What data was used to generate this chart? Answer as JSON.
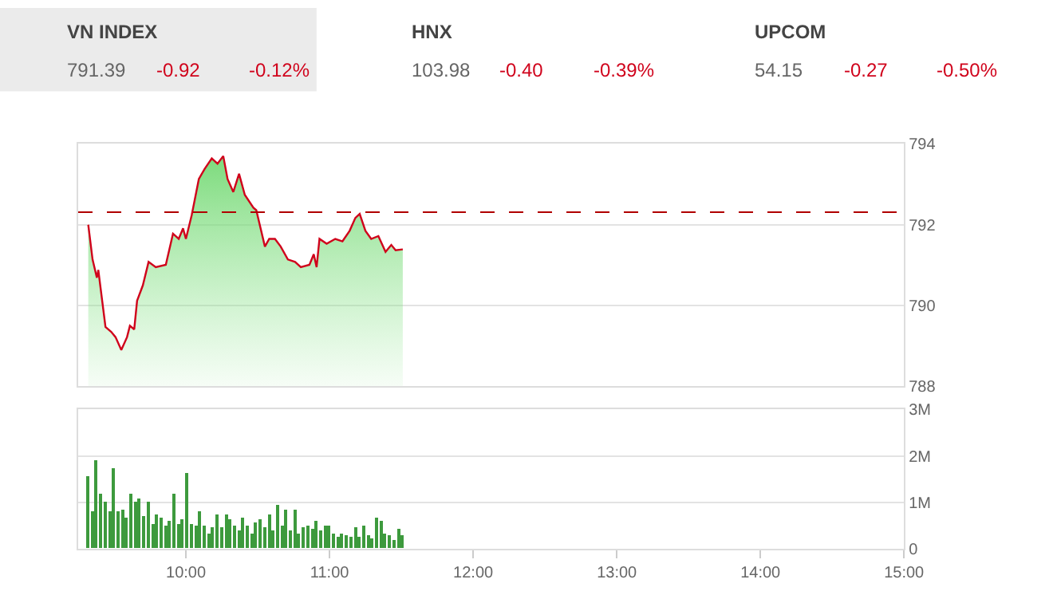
{
  "chart_data": [
    {
      "type": "other",
      "categories": [
        "VN INDEX",
        "HNX",
        "UPCOM"
      ],
      "annotations": [
        "791.39",
        "-0.92",
        "-0.12%",
        "103.98",
        "-0.40",
        "-0.39%",
        "54.15",
        "-0.27",
        "-0.50%"
      ]
    },
    {
      "type": "area",
      "color": "#d0021b",
      "x": [
        9.32,
        9.35,
        9.38,
        9.39,
        9.44,
        9.48,
        9.51,
        9.55,
        9.59,
        9.61,
        9.64,
        9.66,
        9.7,
        9.74,
        9.79,
        9.86,
        9.91,
        9.95,
        9.98,
        10.0,
        10.04,
        10.09,
        10.13,
        10.18,
        10.22,
        10.26,
        10.29,
        10.33,
        10.37,
        10.41,
        10.47,
        10.49,
        10.55,
        10.58,
        10.62,
        10.66,
        10.71,
        10.76,
        10.8,
        10.86,
        10.89,
        10.91,
        10.93,
        10.98,
        11.04,
        11.09,
        11.14,
        11.18,
        11.21,
        11.25,
        11.29,
        11.34,
        11.39,
        11.43,
        11.46,
        11.51
      ],
      "values": [
        792.0,
        791.14,
        790.69,
        790.88,
        789.47,
        789.35,
        789.22,
        788.9,
        789.22,
        789.5,
        789.41,
        790.12,
        790.5,
        791.08,
        790.95,
        791.01,
        791.78,
        791.65,
        791.91,
        791.65,
        792.23,
        793.13,
        793.38,
        793.64,
        793.51,
        793.7,
        793.13,
        792.81,
        793.26,
        792.74,
        792.42,
        792.36,
        791.46,
        791.65,
        791.65,
        791.46,
        791.14,
        791.08,
        790.95,
        791.01,
        791.27,
        790.95,
        791.65,
        791.53,
        791.65,
        791.59,
        791.85,
        792.17,
        792.27,
        791.85,
        791.65,
        791.72,
        791.33,
        791.5,
        791.37,
        791.39
      ],
      "ref_lines": [
        {
          "axis": "y",
          "value": 792.31,
          "color": "#b00000",
          "line_style": "dashed"
        }
      ],
      "xlim": [
        9.25,
        15
      ],
      "ylim": [
        788,
        794
      ],
      "yticks": [
        788,
        790,
        792,
        794
      ],
      "grid": "y",
      "tick_labels": "y"
    },
    {
      "type": "bar",
      "color": "#3d9a3d",
      "x": [
        9.32,
        9.35,
        9.38,
        9.41,
        9.44,
        9.47,
        9.5,
        9.53,
        9.56,
        9.59,
        9.62,
        9.65,
        9.68,
        9.71,
        9.74,
        9.77,
        9.8,
        9.83,
        9.86,
        9.89,
        9.92,
        9.95,
        9.98,
        10.01,
        10.04,
        10.07,
        10.1,
        10.13,
        10.16,
        10.19,
        10.22,
        10.25,
        10.28,
        10.31,
        10.34,
        10.37,
        10.4,
        10.43,
        10.46,
        10.49,
        10.52,
        10.55,
        10.58,
        10.61,
        10.64,
        10.67,
        10.7,
        10.73,
        10.76,
        10.79,
        10.82,
        10.85,
        10.88,
        10.91,
        10.94,
        10.97,
        11.0,
        11.03,
        11.06,
        11.09,
        11.12,
        11.15,
        11.18,
        11.21,
        11.24,
        11.27,
        11.3,
        11.33,
        11.36,
        11.39,
        11.42,
        11.45,
        11.48,
        11.51
      ],
      "values": [
        1.56,
        0.78,
        1.89,
        1.17,
        1.0,
        0.78,
        1.74,
        0.78,
        0.83,
        0.67,
        1.19,
        1.0,
        1.06,
        0.7,
        1.02,
        0.52,
        0.72,
        0.67,
        0.5,
        0.6,
        1.17,
        0.52,
        0.63,
        1.61,
        0.52,
        0.5,
        0.78,
        0.5,
        0.33,
        0.44,
        0.74,
        0.44,
        0.74,
        0.63,
        0.5,
        0.39,
        0.66,
        0.5,
        0.3,
        0.56,
        0.63,
        0.44,
        0.72,
        0.39,
        0.94,
        0.5,
        0.83,
        0.39,
        0.83,
        0.32,
        0.44,
        0.5,
        0.41,
        0.59,
        0.39,
        0.48,
        0.5,
        0.3,
        0.26,
        0.3,
        0.28,
        0.26,
        0.46,
        0.26,
        0.5,
        0.28,
        0.22,
        0.66,
        0.59,
        0.3,
        0.28,
        0.17,
        0.41,
        0.28
      ],
      "xlim": [
        9.25,
        15
      ],
      "xticks": [
        {
          "value": 10,
          "label": "10:00"
        },
        {
          "value": 11,
          "label": "11:00"
        },
        {
          "value": 12,
          "label": "12:00"
        },
        {
          "value": 13,
          "label": "13:00"
        },
        {
          "value": 14,
          "label": "14:00"
        },
        {
          "value": 15,
          "label": "15:00"
        }
      ],
      "ylim": [
        0,
        3
      ],
      "yticks": [
        0,
        {
          "value": 1,
          "label": "1M"
        },
        {
          "value": 2,
          "label": "2M"
        },
        {
          "value": 3,
          "label": "3M"
        }
      ],
      "grid": "y"
    }
  ]
}
